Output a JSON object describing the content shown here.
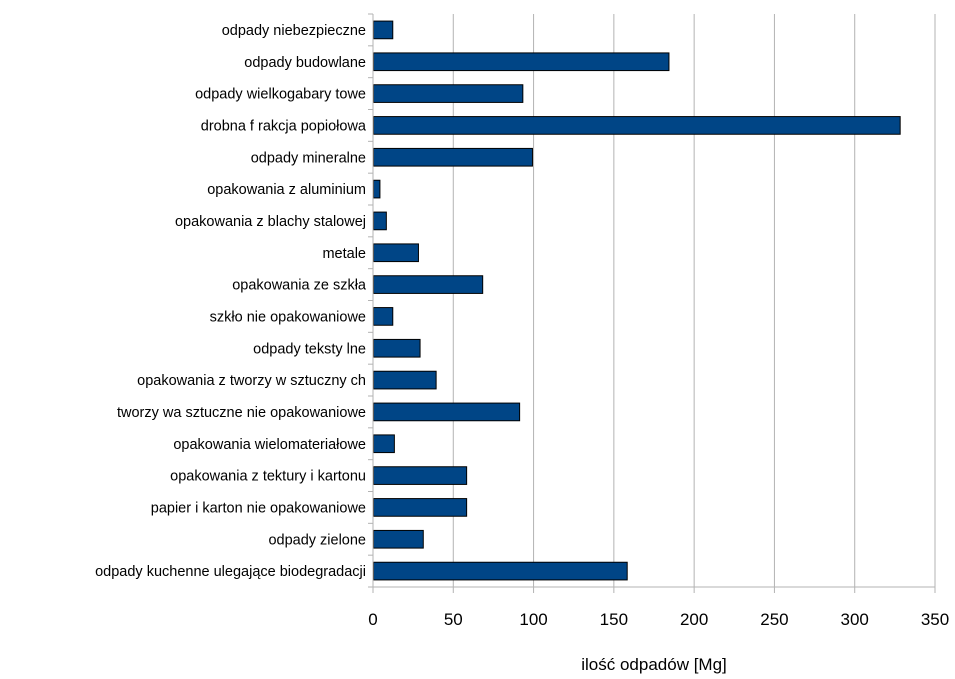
{
  "chart_data": {
    "type": "bar",
    "orientation": "horizontal",
    "categories": [
      "odpady  niebezpieczne",
      "odpady  budowlane",
      "odpady  wielkogabary towe",
      "drobna  f rakcja popiołowa",
      "odpady  mineralne",
      "opakowania z aluminium",
      "opakowania z blachy  stalowej",
      "metale",
      "opakowania ze szkła",
      "szkło nie opakowaniowe",
      "odpady  teksty lne",
      "opakowania z tworzy w sztuczny ch",
      "tworzy wa sztuczne nie opakowaniowe",
      "opakowania wielomateriałowe",
      "opakowania z tektury  i kartonu",
      "papier i karton nie opakowaniowe",
      "odpady  zielone",
      "odpady  kuchenne ulegające biodegradacji"
    ],
    "values": [
      12,
      184,
      93,
      328,
      99,
      4,
      8,
      28,
      68,
      12,
      29,
      39,
      91,
      13,
      58,
      58,
      31,
      158
    ],
    "xlabel": "ilość odpadów [Mg]",
    "ylabel": "",
    "xlim": [
      0,
      350
    ],
    "xticks": [
      "0",
      "50",
      "100",
      "150",
      "200",
      "250",
      "300",
      "350"
    ],
    "grid": "vertical",
    "bar_color": "#004586",
    "bar_edge_color": "#000000"
  }
}
